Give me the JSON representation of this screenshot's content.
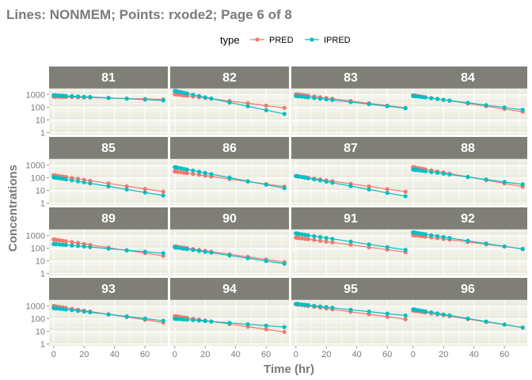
{
  "title": "Lines: NONMEM; Points: rxode2; Page 6 of 8",
  "colors": {
    "PRED": "#F8766D",
    "IPRED": "#00BFC4",
    "strip": "#7f7f77",
    "panel": "#ebebdf",
    "grid": "#ffffff",
    "obs": "#7f7f7f"
  },
  "chart_data": {
    "type": "line",
    "xlabel": "Time (hr)",
    "ylabel": "Concentrations",
    "xlim": [
      -3,
      75
    ],
    "x_ticks": [
      0,
      20,
      40,
      60
    ],
    "x_tick_labels": [
      "0",
      "20",
      "40",
      "60"
    ],
    "y_scale": "log10",
    "ylim": [
      0.7,
      3000
    ],
    "y_ticks": [
      1,
      10,
      100,
      1000
    ],
    "y_tick_labels": [
      "1",
      "10",
      "100",
      "1000"
    ],
    "legend": {
      "title": "type",
      "position": "top",
      "entries": [
        "PRED",
        "IPRED"
      ]
    },
    "times": [
      0,
      0.5,
      1,
      2,
      4,
      6,
      8,
      12,
      16,
      20,
      24,
      36,
      48,
      60,
      72
    ],
    "panels": [
      {
        "id": "81",
        "PRED": [
          700,
          420
        ],
        "IPRED": [
          900,
          350
        ],
        "obs": "IPRED"
      },
      {
        "id": "82",
        "PRED": [
          1100,
          90
        ],
        "IPRED": [
          2000,
          30
        ],
        "obs": "IPRED"
      },
      {
        "id": "83",
        "PRED": [
          1100,
          90
        ],
        "IPRED": [
          800,
          85
        ],
        "obs": "IPRED"
      },
      {
        "id": "84",
        "PRED": [
          900,
          45
        ],
        "IPRED": [
          800,
          65
        ],
        "obs": "IPRED"
      },
      {
        "id": "85",
        "PRED": [
          160,
          8
        ],
        "IPRED": [
          110,
          4
        ],
        "obs": "IPRED"
      },
      {
        "id": "86",
        "PRED": [
          320,
          20
        ],
        "IPRED": [
          700,
          15
        ],
        "obs": "IPRED"
      },
      {
        "id": "87",
        "PRED": [
          140,
          8
        ],
        "IPRED": [
          140,
          3.5
        ],
        "obs": "IPRED"
      },
      {
        "id": "88",
        "PRED": [
          700,
          20
        ],
        "IPRED": [
          450,
          30
        ],
        "obs": "IPRED"
      },
      {
        "id": "89",
        "PRED": [
          500,
          25
        ],
        "IPRED": [
          220,
          40
        ],
        "obs": "IPRED"
      },
      {
        "id": "90",
        "PRED": [
          140,
          8
        ],
        "IPRED": [
          120,
          6
        ],
        "obs": "IPRED"
      },
      {
        "id": "91",
        "PRED": [
          700,
          50
        ],
        "IPRED": [
          1500,
          75
        ],
        "obs": "IPRED"
      },
      {
        "id": "92",
        "PRED": [
          1100,
          90
        ],
        "IPRED": [
          1800,
          85
        ],
        "obs": "IPRED"
      },
      {
        "id": "93",
        "PRED": [
          1000,
          50
        ],
        "IPRED": [
          700,
          70
        ],
        "obs": "IPRED"
      },
      {
        "id": "94",
        "PRED": [
          160,
          9
        ],
        "IPRED": [
          100,
          22
        ],
        "obs": "IPRED"
      },
      {
        "id": "95",
        "PRED": [
          1400,
          90
        ],
        "IPRED": [
          1500,
          180
        ],
        "obs": "IPRED"
      },
      {
        "id": "96",
        "PRED": [
          450,
          20
        ],
        "IPRED": [
          550,
          20
        ],
        "obs": "IPRED"
      }
    ]
  }
}
